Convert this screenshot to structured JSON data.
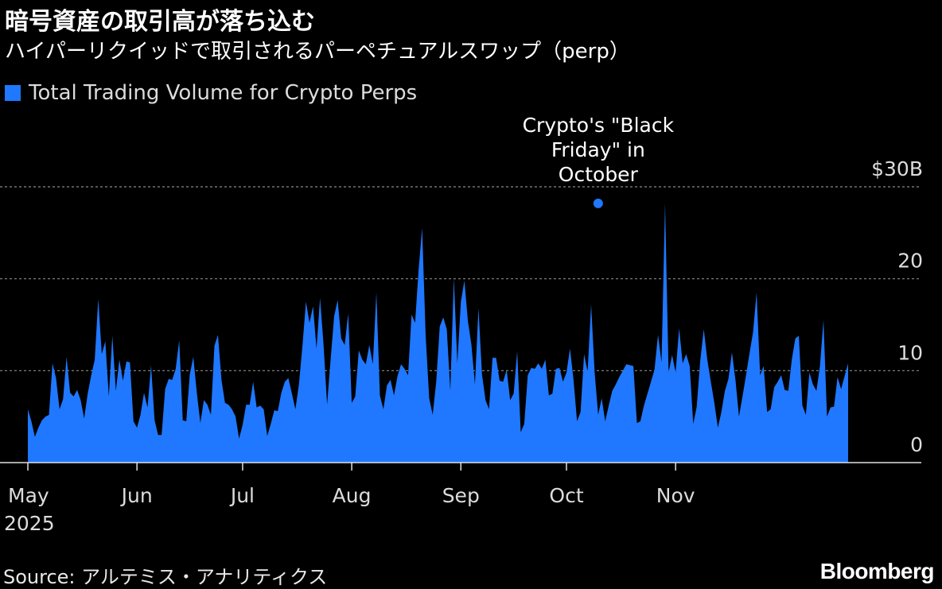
{
  "header": {
    "title": "暗号資産の取引高が落ち込む",
    "subtitle": "ハイパーリクイッドで取引されるパーペチュアルスワップ（perp）"
  },
  "legend": {
    "label": "Total Trading Volume for Crypto Perps",
    "color": "#1f78ff"
  },
  "footer": {
    "source": "Source: アルテミス・アナリティクス",
    "brand": "Bloomberg"
  },
  "chart_data": {
    "type": "area",
    "series": [
      {
        "name": "Total Trading Volume for Crypto Perps",
        "values": [
          5.8,
          4.5,
          2.8,
          3.8,
          4.6,
          5.0,
          5.2,
          10.8,
          9.2,
          5.8,
          6.9,
          11.5,
          7.6,
          7.2,
          7.9,
          6.8,
          4.8,
          7.5,
          9.5,
          11.2,
          17.8,
          11.8,
          13.2,
          7.2,
          13.8,
          7.8,
          11.2,
          8.9,
          11.0,
          10.9,
          4.5,
          3.8,
          5.2,
          7.6,
          6.0,
          10.6,
          4.6,
          3.0,
          3.0,
          8.0,
          9.1,
          9.0,
          10.2,
          13.3,
          4.6,
          4.5,
          9.6,
          11.5,
          7.6,
          4.3,
          6.8,
          6.3,
          5.2,
          12.7,
          13.9,
          9.0,
          6.5,
          6.3,
          5.8,
          5.0,
          2.6,
          4.1,
          6.3,
          6.3,
          8.8,
          6.0,
          6.2,
          5.8,
          2.9,
          4.2,
          5.7,
          5.6,
          7.6,
          8.8,
          9.2,
          7.5,
          5.8,
          8.5,
          12.7,
          17.5,
          15.2,
          17.0,
          12.4,
          17.9,
          12.8,
          6.3,
          11.2,
          15.9,
          17.7,
          13.5,
          12.8,
          16.2,
          6.5,
          7.2,
          12.2,
          11.2,
          10.7,
          12.8,
          10.7,
          18.5,
          7.3,
          5.8,
          8.4,
          9.0,
          7.3,
          9.4,
          10.7,
          10.2,
          9.5,
          16.1,
          15.2,
          21.0,
          25.5,
          13.8,
          7.0,
          5.2,
          8.8,
          14.8,
          15.8,
          14.5,
          7.8,
          20.1,
          10.8,
          17.5,
          19.8,
          15.4,
          12.8,
          8.5,
          16.8,
          9.6,
          6.8,
          5.8,
          11.4,
          11.4,
          8.9,
          8.8,
          10.1,
          6.8,
          7.5,
          12.1,
          3.3,
          4.2,
          9.5,
          10.3,
          10.2,
          10.8,
          10.2,
          11.2,
          7.3,
          7.5,
          10.2,
          10.3,
          8.8,
          9.8,
          12.4,
          9.0,
          4.5,
          5.5,
          11.8,
          9.9,
          17.2,
          9.8,
          5.2,
          7.0,
          4.5,
          6.2,
          7.8,
          8.5,
          9.3,
          10.0,
          10.7,
          10.6,
          10.5,
          4.3,
          4.5,
          6.2,
          7.5,
          8.8,
          10.1,
          13.9,
          10.9,
          28.2,
          9.8,
          11.7,
          9.8,
          14.6,
          10.8,
          11.8,
          10.5,
          4.2,
          6.1,
          11.1,
          14.5,
          11.2,
          8.8,
          6.5,
          3.8,
          5.5,
          7.8,
          9.1,
          12.0,
          9.0,
          5.0,
          7.2,
          9.5,
          11.9,
          14.2,
          18.5,
          9.5,
          10.5,
          5.5,
          5.8,
          8.2,
          8.8,
          9.5,
          7.9,
          7.8,
          11.2,
          13.5,
          13.8,
          6.2,
          5.2,
          9.8,
          8.5,
          7.8,
          10.5,
          15.5,
          5.0,
          6.0,
          6.1,
          9.3,
          8.0,
          9.4,
          10.8
        ]
      }
    ],
    "x_axis": {
      "start_date": "2025-05-01",
      "labels": [
        "May",
        "Jun",
        "Jul",
        "Aug",
        "Sep",
        "Oct",
        "Nov"
      ],
      "year_label": "2025"
    },
    "y_axis": {
      "ticks": [
        0,
        10,
        20,
        30
      ],
      "tick_labels": [
        "0",
        "10",
        "20",
        "$30B"
      ],
      "ylim": [
        0,
        30
      ],
      "gridlines": true
    },
    "annotation": {
      "lines": [
        "Crypto's \"Black",
        "Friday\" in",
        "October"
      ],
      "date": "2025-10-10",
      "value": 28.2
    }
  }
}
